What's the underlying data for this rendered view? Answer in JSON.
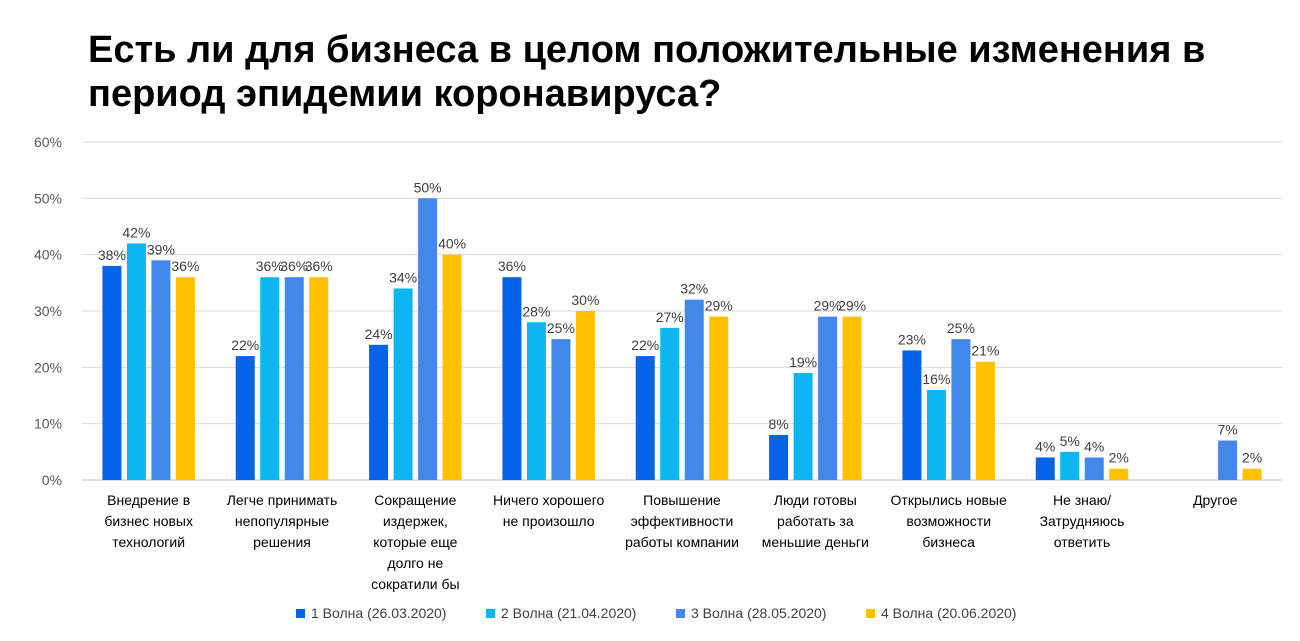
{
  "chart_data": {
    "type": "bar",
    "title": "Есть ли для бизнеса в целом положительные изменения в период эпидемии коронавируса?",
    "ylim": [
      0,
      60
    ],
    "yticks": [
      "0%",
      "10%",
      "20%",
      "30%",
      "40%",
      "50%",
      "60%"
    ],
    "grid": true,
    "legend_position": "bottom",
    "categories": [
      [
        "Внедрение в",
        "бизнес новых",
        "технологий"
      ],
      [
        "Легче принимать",
        "непопулярные",
        "решения"
      ],
      [
        "Сокращение",
        "издержек,",
        "которые еще",
        "долго не",
        "сократили бы"
      ],
      [
        "Ничего хорошего",
        "не произошло"
      ],
      [
        "Повышение",
        "эффективности",
        "работы компании"
      ],
      [
        "Люди готовы",
        "работать за",
        "меньшие деньги"
      ],
      [
        "Открылись новые",
        "возможности",
        "бизнеса"
      ],
      [
        "Не знаю/",
        "Затрудняюсь",
        "ответить"
      ],
      [
        "Другое"
      ]
    ],
    "series": [
      {
        "name": "1 Волна (26.03.2020)",
        "color": "#0563E8",
        "values": [
          38,
          22,
          24,
          36,
          22,
          8,
          23,
          4,
          null
        ],
        "labels": [
          "38%",
          "22%",
          "24%",
          "36%",
          "22%",
          "8%",
          "23%",
          "4%",
          ""
        ]
      },
      {
        "name": "2 Волна (21.04.2020)",
        "color": "#0DB6F0",
        "values": [
          42,
          36,
          34,
          28,
          27,
          19,
          16,
          5,
          null
        ],
        "labels": [
          "42%",
          "36%",
          "34%",
          "28%",
          "27%",
          "19%",
          "16%",
          "5%",
          ""
        ]
      },
      {
        "name": "3 Волна (28.05.2020)",
        "color": "#4287E9",
        "values": [
          39,
          36,
          50,
          25,
          32,
          29,
          25,
          4,
          7
        ],
        "labels": [
          "39%",
          "36%",
          "50%",
          "25%",
          "32%",
          "29%",
          "25%",
          "4%",
          "7%"
        ]
      },
      {
        "name": "4 Волна (20.06.2020)",
        "color": "#FFC000",
        "values": [
          36,
          36,
          40,
          30,
          29,
          29,
          21,
          2,
          2
        ],
        "labels": [
          "36%",
          "36%",
          "40%",
          "30%",
          "29%",
          "29%",
          "21%",
          "2%",
          "2%"
        ]
      }
    ]
  }
}
